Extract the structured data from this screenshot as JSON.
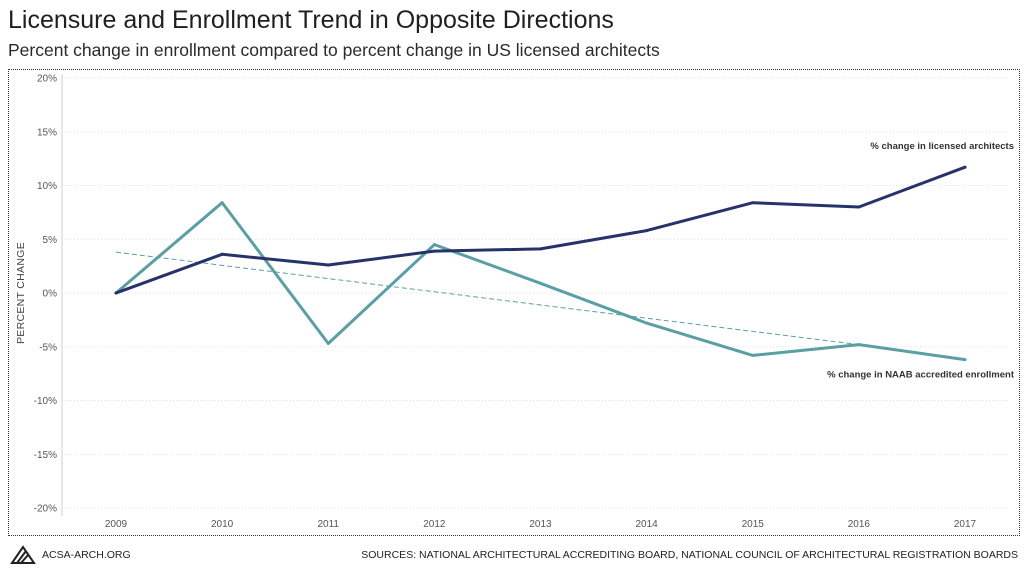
{
  "header": {
    "title": "Licensure and Enrollment Trend in Opposite Directions",
    "subtitle": "Percent change in enrollment compared to percent change in US licensed architects"
  },
  "footer": {
    "org": "ACSA-ARCH.ORG",
    "sources": "SOURCES: NATIONAL ARCHITECTURAL ACCREDITING BOARD, NATIONAL COUNCIL OF ARCHITECTURAL REGISTRATION BOARDS"
  },
  "colors": {
    "licensed": "#26336b",
    "enrollment": "#5b9ea3",
    "trend": "#5b9ea3",
    "grid": "#d6d6d6"
  },
  "chart_data": {
    "type": "line",
    "title": "Licensure and Enrollment Trend in Opposite Directions",
    "subtitle": "Percent change in enrollment compared to percent change in US licensed architects",
    "xlabel": "",
    "ylabel": "PERCENT CHANGE",
    "categories": [
      "2009",
      "2010",
      "2011",
      "2012",
      "2013",
      "2014",
      "2015",
      "2016",
      "2017"
    ],
    "ylim": [
      -20,
      20
    ],
    "yticks": [
      20,
      15,
      10,
      5,
      0,
      -5,
      -10,
      -15,
      -20
    ],
    "ytick_labels": [
      "20%",
      "15%",
      "10%",
      "5%",
      "0%",
      "-5%",
      "-10%",
      "-15%",
      "-20%"
    ],
    "grid": true,
    "series": [
      {
        "name": "% change in licensed architects",
        "key": "licensed",
        "values": [
          0.0,
          3.6,
          2.6,
          3.9,
          4.1,
          5.8,
          8.4,
          8.0,
          11.7
        ]
      },
      {
        "name": "% change in NAAB accredited enrollment",
        "key": "enrollment",
        "values": [
          0.0,
          8.4,
          -4.7,
          4.5,
          0.9,
          -2.8,
          -5.8,
          -4.8,
          -6.2
        ]
      }
    ],
    "trendline": {
      "of": "enrollment",
      "style": "dashed",
      "start": 3.8,
      "end": -4.8,
      "x_start": "2009",
      "x_end": "2016"
    },
    "annotations": [
      {
        "series": "licensed",
        "text": "% change in licensed architects"
      },
      {
        "series": "enrollment",
        "text": "% change in NAAB accredited enrollment"
      }
    ]
  }
}
